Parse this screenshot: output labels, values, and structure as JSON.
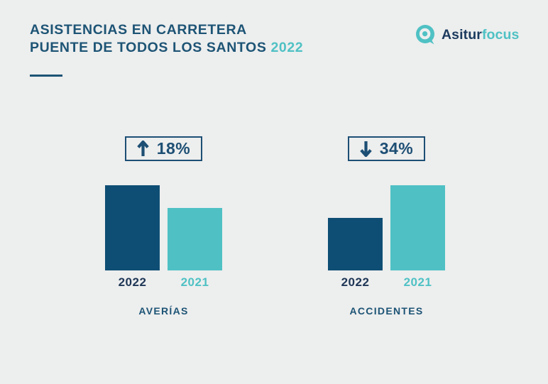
{
  "header": {
    "title_line1": "ASISTENCIAS EN CARRETERA",
    "title_line2": "PUENTE DE TODOS LOS SANTOS",
    "title_year": "2022",
    "brand_primary": "Asitur",
    "brand_secondary": "focus"
  },
  "colors": {
    "background": "#EDEEEE",
    "title_blue": "#1D5475",
    "badge_blue": "#1D4F74",
    "bar_dark_blue": "#0E4E74",
    "teal": "#4FC1C4",
    "navy_text": "#1F3756"
  },
  "chart_data": [
    {
      "type": "bar",
      "title": "AVERÍAS",
      "categories": [
        "2022",
        "2021"
      ],
      "values": [
        120,
        88
      ],
      "unit": "relative bar height (no numeric axis shown)",
      "change_label": "18%",
      "change_direction": "up",
      "series_colors": [
        "#0E4E74",
        "#4FC1C4"
      ],
      "legend_position": "none",
      "grid": false
    },
    {
      "type": "bar",
      "title": "ACCIDENTES",
      "categories": [
        "2022",
        "2021"
      ],
      "values": [
        74,
        120
      ],
      "unit": "relative bar height (no numeric axis shown)",
      "change_label": "34%",
      "change_direction": "down",
      "series_colors": [
        "#0E4E74",
        "#4FC1C4"
      ],
      "legend_position": "none",
      "grid": false
    }
  ]
}
